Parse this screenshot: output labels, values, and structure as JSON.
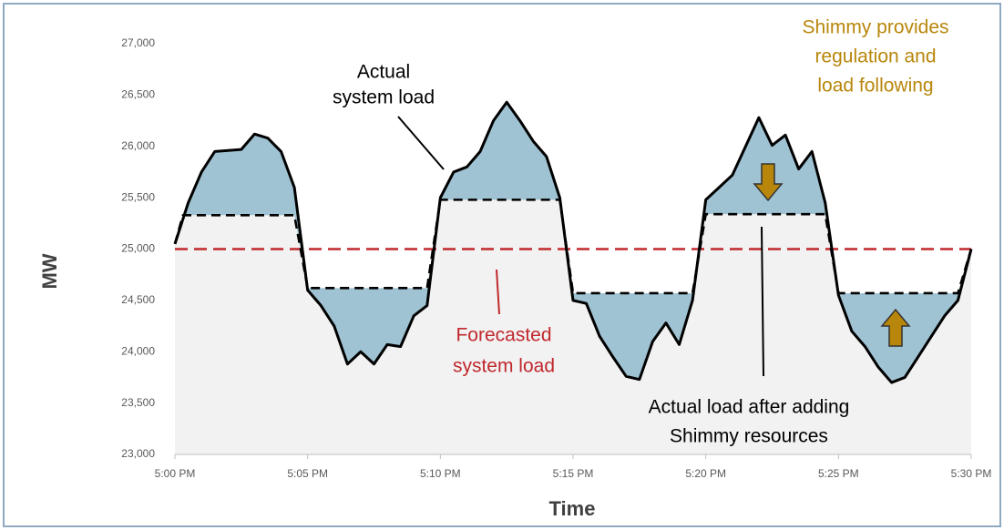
{
  "chart_data": {
    "type": "line",
    "xlabel": "Time",
    "ylabel": "MW",
    "xlim": [
      0,
      30
    ],
    "xticks": [
      {
        "value": 0,
        "label": "5:00 PM"
      },
      {
        "value": 5,
        "label": "5:05 PM"
      },
      {
        "value": 10,
        "label": "5:10 PM"
      },
      {
        "value": 15,
        "label": "5:15 PM"
      },
      {
        "value": 20,
        "label": "5:20 PM"
      },
      {
        "value": 25,
        "label": "5:25 PM"
      },
      {
        "value": 30,
        "label": "5:30 PM"
      }
    ],
    "ylim": [
      23000,
      27000
    ],
    "yticks": [
      {
        "value": 23000,
        "label": "23,000"
      },
      {
        "value": 23500,
        "label": "23,500"
      },
      {
        "value": 24000,
        "label": "24,000"
      },
      {
        "value": 24500,
        "label": "24,500"
      },
      {
        "value": 25000,
        "label": "25,000"
      },
      {
        "value": 25500,
        "label": "25,500"
      },
      {
        "value": 26000,
        "label": "26,000"
      },
      {
        "value": 26500,
        "label": "26,500"
      },
      {
        "value": 27000,
        "label": "27,000"
      }
    ],
    "series": [
      {
        "name": "Actual system load",
        "color": "#000000",
        "dash": false,
        "x": [
          0,
          0.5,
          1,
          1.5,
          2,
          2.5,
          3,
          3.5,
          4,
          4.5,
          5,
          5.5,
          6,
          6.5,
          7,
          7.5,
          8,
          8.5,
          9,
          9.5,
          10,
          10.5,
          11,
          11.5,
          12,
          12.5,
          13,
          13.5,
          14,
          14.5,
          15,
          15.5,
          16,
          16.5,
          17,
          17.5,
          18,
          18.5,
          19,
          19.5,
          20,
          20.5,
          21,
          21.5,
          22,
          22.5,
          23,
          23.5,
          24,
          24.5,
          25,
          25.5,
          26,
          26.5,
          27,
          27.5,
          28,
          28.5,
          29,
          29.5,
          30
        ],
        "values": [
          25050,
          25450,
          25750,
          25950,
          25960,
          25970,
          26120,
          26080,
          25950,
          25600,
          24600,
          24450,
          24250,
          23880,
          24000,
          23880,
          24070,
          24050,
          24350,
          24450,
          25500,
          25750,
          25800,
          25950,
          26250,
          26430,
          26250,
          26050,
          25900,
          25500,
          24500,
          24470,
          24150,
          23950,
          23760,
          23730,
          24100,
          24280,
          24070,
          24500,
          25480,
          25600,
          25720,
          26000,
          26280,
          26010,
          26110,
          25780,
          25950,
          25450,
          24550,
          24200,
          24050,
          23850,
          23700,
          23750,
          23950,
          24150,
          24350,
          24500,
          25000
        ]
      },
      {
        "name": "Actual load after adding Shimmy resources",
        "color": "#000000",
        "dash": true,
        "x": [
          0,
          0.3,
          4.5,
          5,
          9.5,
          10,
          14.5,
          15,
          19.5,
          20,
          24.5,
          25,
          29.5,
          30
        ],
        "values": [
          25050,
          25330,
          25330,
          24620,
          24620,
          25480,
          25480,
          24570,
          24570,
          25340,
          25340,
          24570,
          24570,
          25000
        ]
      },
      {
        "name": "Forecasted system load",
        "color": "#c0282d",
        "dash": true,
        "x": [
          0,
          30
        ],
        "values": [
          25000,
          25000
        ]
      }
    ],
    "annotations": [
      {
        "lines": [
          "Actual",
          "system load"
        ],
        "color": "#000000"
      },
      {
        "lines": [
          "Forecasted",
          "system load"
        ],
        "color": "#c0282d"
      },
      {
        "lines": [
          "Actual load after adding",
          "Shimmy resources"
        ],
        "color": "#000000"
      },
      {
        "lines": [
          "Shimmy provides",
          "regulation and",
          "load following"
        ],
        "color": "#b8860b"
      }
    ]
  }
}
